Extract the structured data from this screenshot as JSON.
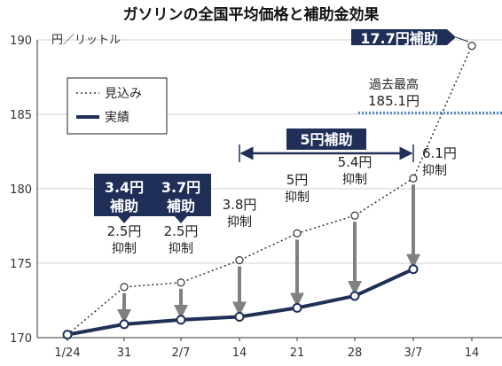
{
  "chart_data": {
    "type": "line",
    "title": "ガソリンの全国平均価格と補助金効果",
    "ylabel": "円／リットル",
    "ylim": [
      170,
      190
    ],
    "yticks": [
      170,
      175,
      180,
      185,
      190
    ],
    "grid": true,
    "categories": [
      "1/24",
      "31",
      "2/7",
      "14",
      "21",
      "28",
      "3/7",
      "14"
    ],
    "series": [
      {
        "name": "見込み",
        "style": "dotted",
        "color": "#333333",
        "values": [
          170.2,
          173.4,
          173.7,
          175.2,
          177.0,
          178.2,
          180.7,
          189.6
        ]
      },
      {
        "name": "実績",
        "style": "solid",
        "color": "#1f2f57",
        "values": [
          170.2,
          170.9,
          171.2,
          171.4,
          172.0,
          172.8,
          174.6,
          null
        ]
      }
    ],
    "legend": {
      "placement": "top-left",
      "items": [
        "見込み",
        "実績"
      ]
    },
    "reference": {
      "value": 185.1,
      "label_line1": "過去最高",
      "label_line2": "185.1円",
      "color": "#4a86c5"
    },
    "suppression": [
      {
        "index": 1,
        "amount": "2.5円",
        "label": "抑制"
      },
      {
        "index": 2,
        "amount": "2.5円",
        "label": "抑制"
      },
      {
        "index": 3,
        "amount": "3.8円",
        "label": "抑制"
      },
      {
        "index": 4,
        "amount": "5円",
        "label": "抑制"
      },
      {
        "index": 5,
        "amount": "5.4円",
        "label": "抑制"
      },
      {
        "index": 6,
        "amount": "6.1円",
        "label": "抑制"
      }
    ],
    "subsidy_boxes": [
      {
        "line1": "3.4円",
        "line2": "補助",
        "index": 1
      },
      {
        "line1": "3.7円",
        "line2": "補助",
        "index": 2
      }
    ],
    "subsidy_span": {
      "label": "5円補助",
      "from_index": 3,
      "to_index": 6
    },
    "top_badge": {
      "label": "17.7円補助",
      "index": 7
    },
    "colors": {
      "navy": "#1f2f57",
      "arrow": "#808080",
      "grid": "#d0d0d0",
      "reference": "#4a86c5"
    }
  }
}
